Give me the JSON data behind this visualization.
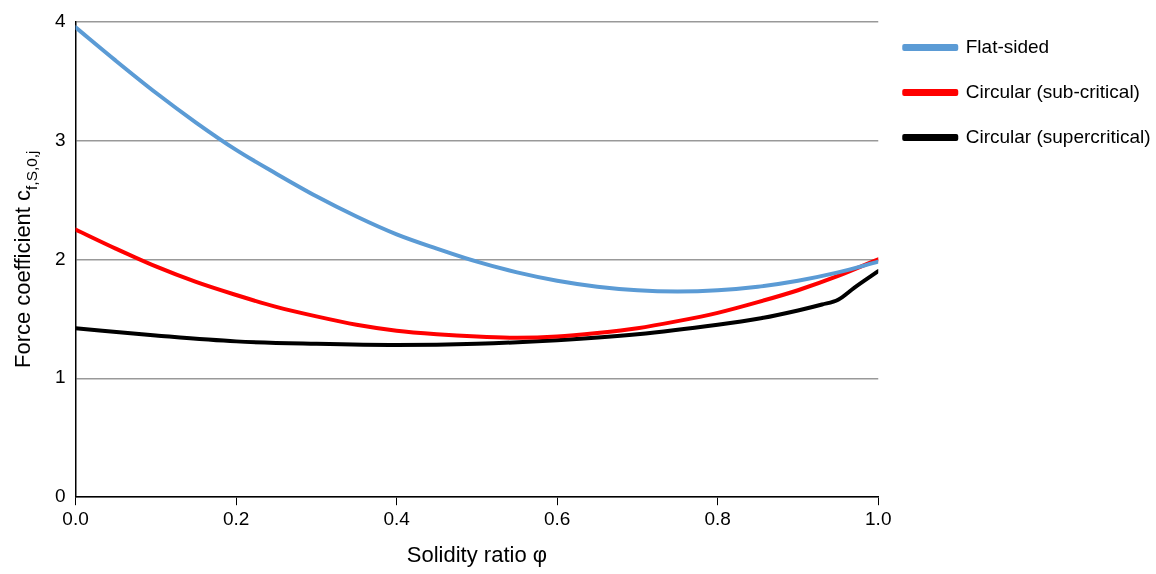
{
  "chart_data": {
    "type": "line",
    "xlabel": "Solidity ratio φ",
    "ylabel": "Force coefficient c$_{f,S,0,j}$",
    "xlim": [
      0,
      1
    ],
    "ylim": [
      0,
      4
    ],
    "xticks": [
      {
        "value": 0,
        "label": "0.0"
      },
      {
        "value": 0.2,
        "label": "0.2"
      },
      {
        "value": 0.4,
        "label": "0.4"
      },
      {
        "value": 0.6,
        "label": "0.6"
      },
      {
        "value": 0.8,
        "label": "0.8"
      },
      {
        "value": 1,
        "label": "1.0"
      }
    ],
    "yticks": [
      0,
      1,
      2,
      3,
      4
    ],
    "grid": "y",
    "legend": "right",
    "marker": "none",
    "line_style": "solid",
    "series": [
      {
        "name": "Flat-sided",
        "color": "#5b9bd5",
        "x": [
          0,
          0.05,
          0.1,
          0.15,
          0.2,
          0.25,
          0.3,
          0.35,
          0.4,
          0.45,
          0.5,
          0.55,
          0.6,
          0.65,
          0.7,
          0.75,
          0.8,
          0.85,
          0.9,
          0.95,
          1
        ],
        "values": [
          3.95,
          3.67,
          3.4,
          3.15,
          2.92,
          2.72,
          2.53,
          2.36,
          2.21,
          2.09,
          1.98,
          1.89,
          1.82,
          1.77,
          1.74,
          1.73,
          1.74,
          1.77,
          1.82,
          1.89,
          1.98
        ]
      },
      {
        "name": "Circular (sub-critical)",
        "color": "#ff0000",
        "x": [
          0,
          0.05,
          0.1,
          0.15,
          0.2,
          0.25,
          0.3,
          0.35,
          0.4,
          0.45,
          0.5,
          0.55,
          0.6,
          0.65,
          0.7,
          0.75,
          0.8,
          0.85,
          0.9,
          0.95,
          1
        ],
        "values": [
          2.25,
          2.09,
          1.94,
          1.81,
          1.7,
          1.6,
          1.52,
          1.45,
          1.4,
          1.37,
          1.35,
          1.34,
          1.35,
          1.38,
          1.42,
          1.48,
          1.55,
          1.64,
          1.74,
          1.86,
          2.0
        ]
      },
      {
        "name": "Circular (supercritical)",
        "color": "#000000",
        "x": [
          0,
          0.1,
          0.2,
          0.3,
          0.4,
          0.5,
          0.6,
          0.7,
          0.8,
          0.85,
          0.9,
          0.93,
          0.95,
          0.97,
          1
        ],
        "values": [
          1.42,
          1.36,
          1.31,
          1.29,
          1.28,
          1.29,
          1.32,
          1.37,
          1.45,
          1.5,
          1.57,
          1.62,
          1.66,
          1.76,
          1.9
        ]
      }
    ]
  }
}
